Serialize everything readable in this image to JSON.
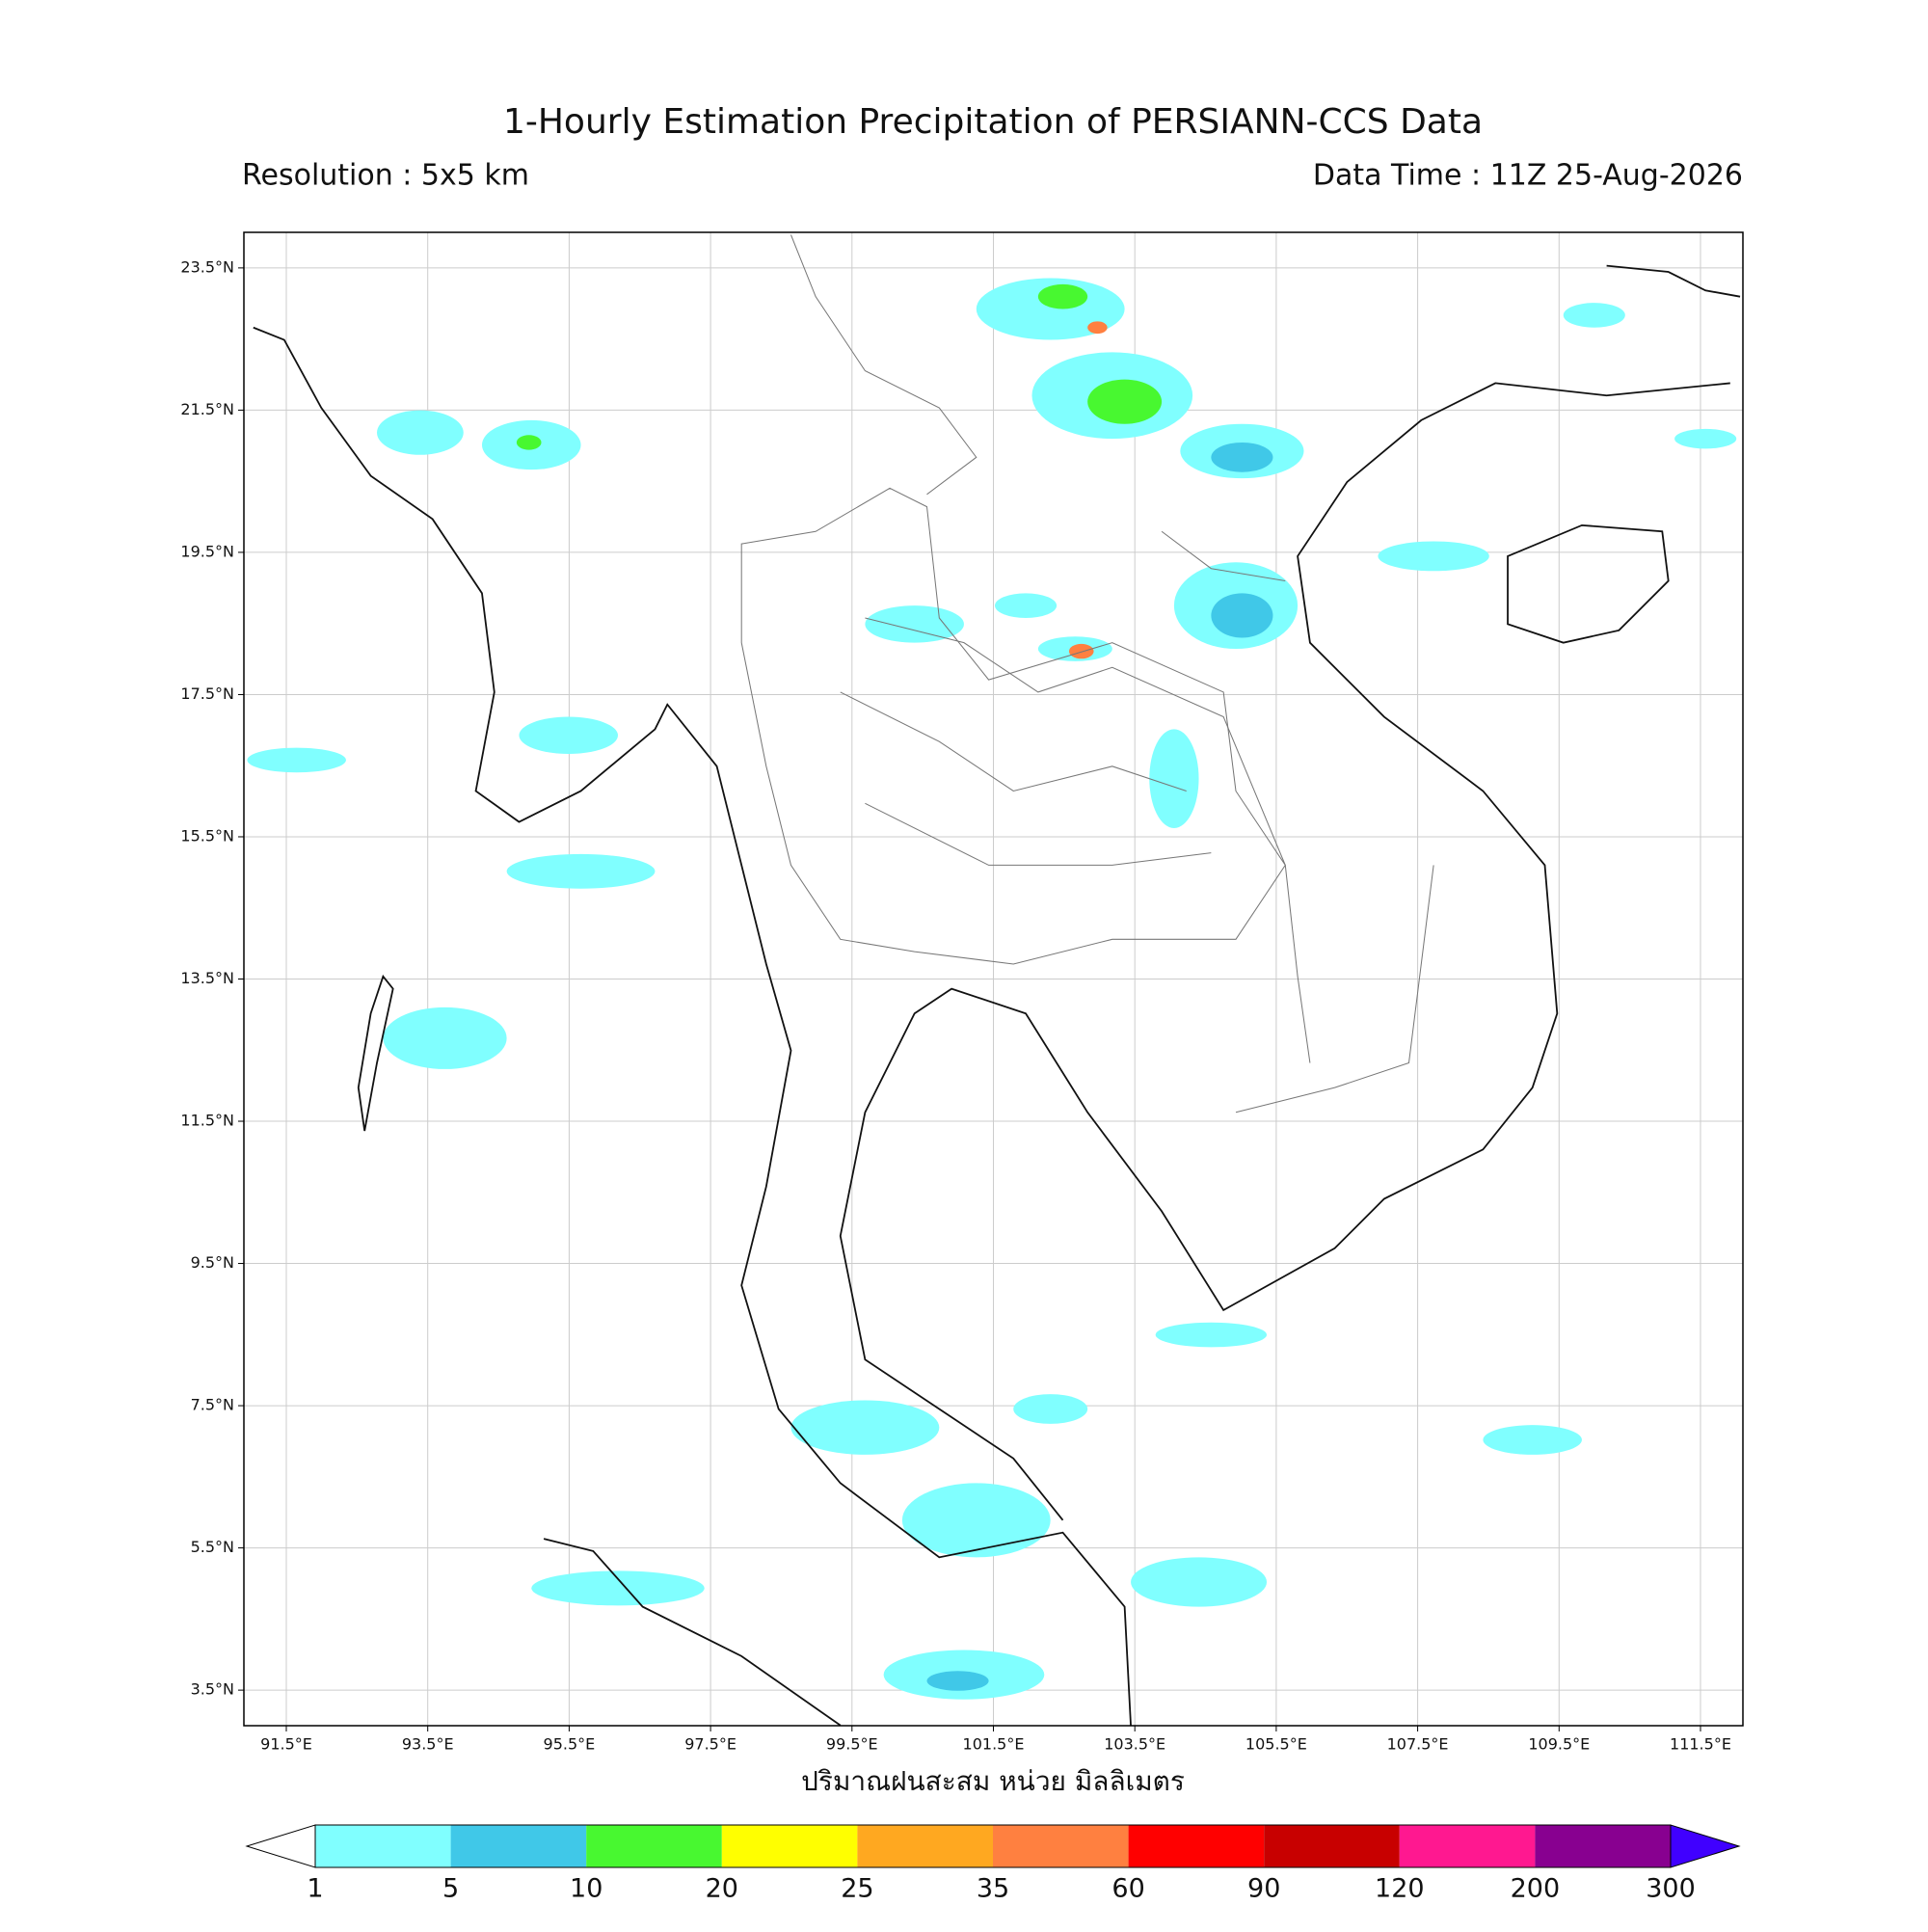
{
  "title": "1-Hourly Estimation Precipitation of PERSIANN-CCS Data",
  "subtitle_left": "Resolution : 5x5 km",
  "subtitle_right": "Data Time : 11Z 25-Aug-2026",
  "map": {
    "xlim": [
      90.9,
      112.1
    ],
    "ylim": [
      3.0,
      24.0
    ],
    "grid": true,
    "xticks": [
      {
        "value": 91.5,
        "label": "91.5°E"
      },
      {
        "value": 93.5,
        "label": "93.5°E"
      },
      {
        "value": 95.5,
        "label": "95.5°E"
      },
      {
        "value": 97.5,
        "label": "97.5°E"
      },
      {
        "value": 99.5,
        "label": "99.5°E"
      },
      {
        "value": 101.5,
        "label": "101.5°E"
      },
      {
        "value": 103.5,
        "label": "103.5°E"
      },
      {
        "value": 105.5,
        "label": "105.5°E"
      },
      {
        "value": 107.5,
        "label": "107.5°E"
      },
      {
        "value": 109.5,
        "label": "109.5°E"
      },
      {
        "value": 111.5,
        "label": "111.5°E"
      }
    ],
    "yticks": [
      {
        "value": 3.5,
        "label": "3.5°N"
      },
      {
        "value": 5.5,
        "label": "5.5°N"
      },
      {
        "value": 7.5,
        "label": "7.5°N"
      },
      {
        "value": 9.5,
        "label": "9.5°N"
      },
      {
        "value": 11.5,
        "label": "11.5°N"
      },
      {
        "value": 13.5,
        "label": "13.5°N"
      },
      {
        "value": 15.5,
        "label": "15.5°N"
      },
      {
        "value": 17.5,
        "label": "17.5°N"
      },
      {
        "value": 19.5,
        "label": "19.5°N"
      },
      {
        "value": 21.5,
        "label": "21.5°N"
      },
      {
        "value": 23.5,
        "label": "23.5°N"
      }
    ]
  },
  "colorbar": {
    "label": "ปริมาณฝนสะสม หน่วย มิลลิเมตร",
    "levels": [
      1,
      5,
      10,
      20,
      25,
      35,
      60,
      90,
      120,
      200,
      300
    ],
    "colors": [
      "#80ffff",
      "#40c8e8",
      "#48f830",
      "#ffff00",
      "#ffa820",
      "#ff8040",
      "#ff0000",
      "#c80000",
      "#ff1890",
      "#880090"
    ],
    "under_color": "#ffffff",
    "over_color": "#4000ff"
  }
}
